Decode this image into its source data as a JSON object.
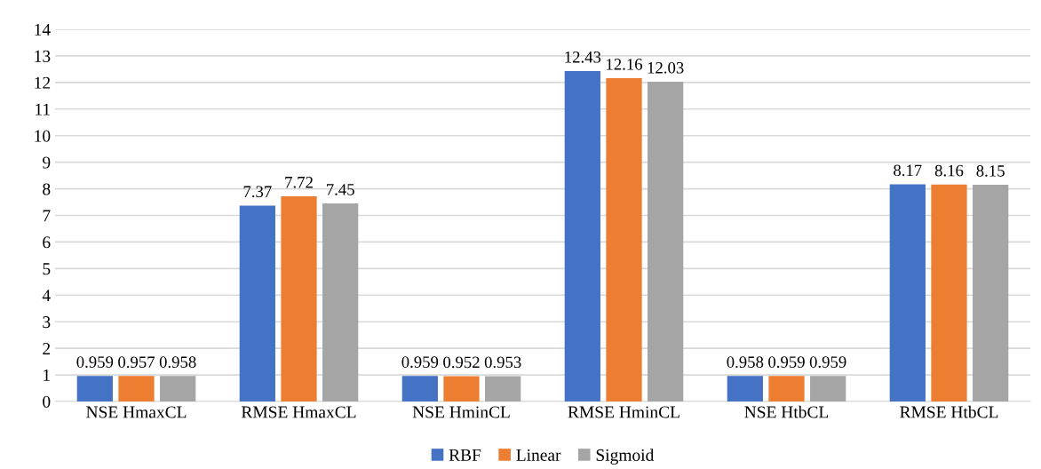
{
  "chart_data": {
    "type": "bar",
    "categories": [
      "NSE HmaxCL",
      "RMSE HmaxCL",
      "NSE HminCL",
      "RMSE HminCL",
      "NSE HtbCL",
      "RMSE HtbCL"
    ],
    "series": [
      {
        "name": "RBF",
        "color": "#4472c4",
        "values": [
          0.959,
          7.37,
          0.959,
          12.43,
          0.958,
          8.17
        ]
      },
      {
        "name": "Linear",
        "color": "#ed7d31",
        "values": [
          0.957,
          7.72,
          0.952,
          12.16,
          0.959,
          8.16
        ]
      },
      {
        "name": "Sigmoid",
        "color": "#a5a5a5",
        "values": [
          0.958,
          7.45,
          0.953,
          12.03,
          0.959,
          8.15
        ]
      }
    ],
    "ylim": [
      0,
      14
    ],
    "yticks": [
      0,
      1,
      2,
      3,
      4,
      5,
      6,
      7,
      8,
      9,
      10,
      11,
      12,
      13,
      14
    ],
    "grid": "y",
    "legend": "bottom",
    "data_labels": true
  }
}
